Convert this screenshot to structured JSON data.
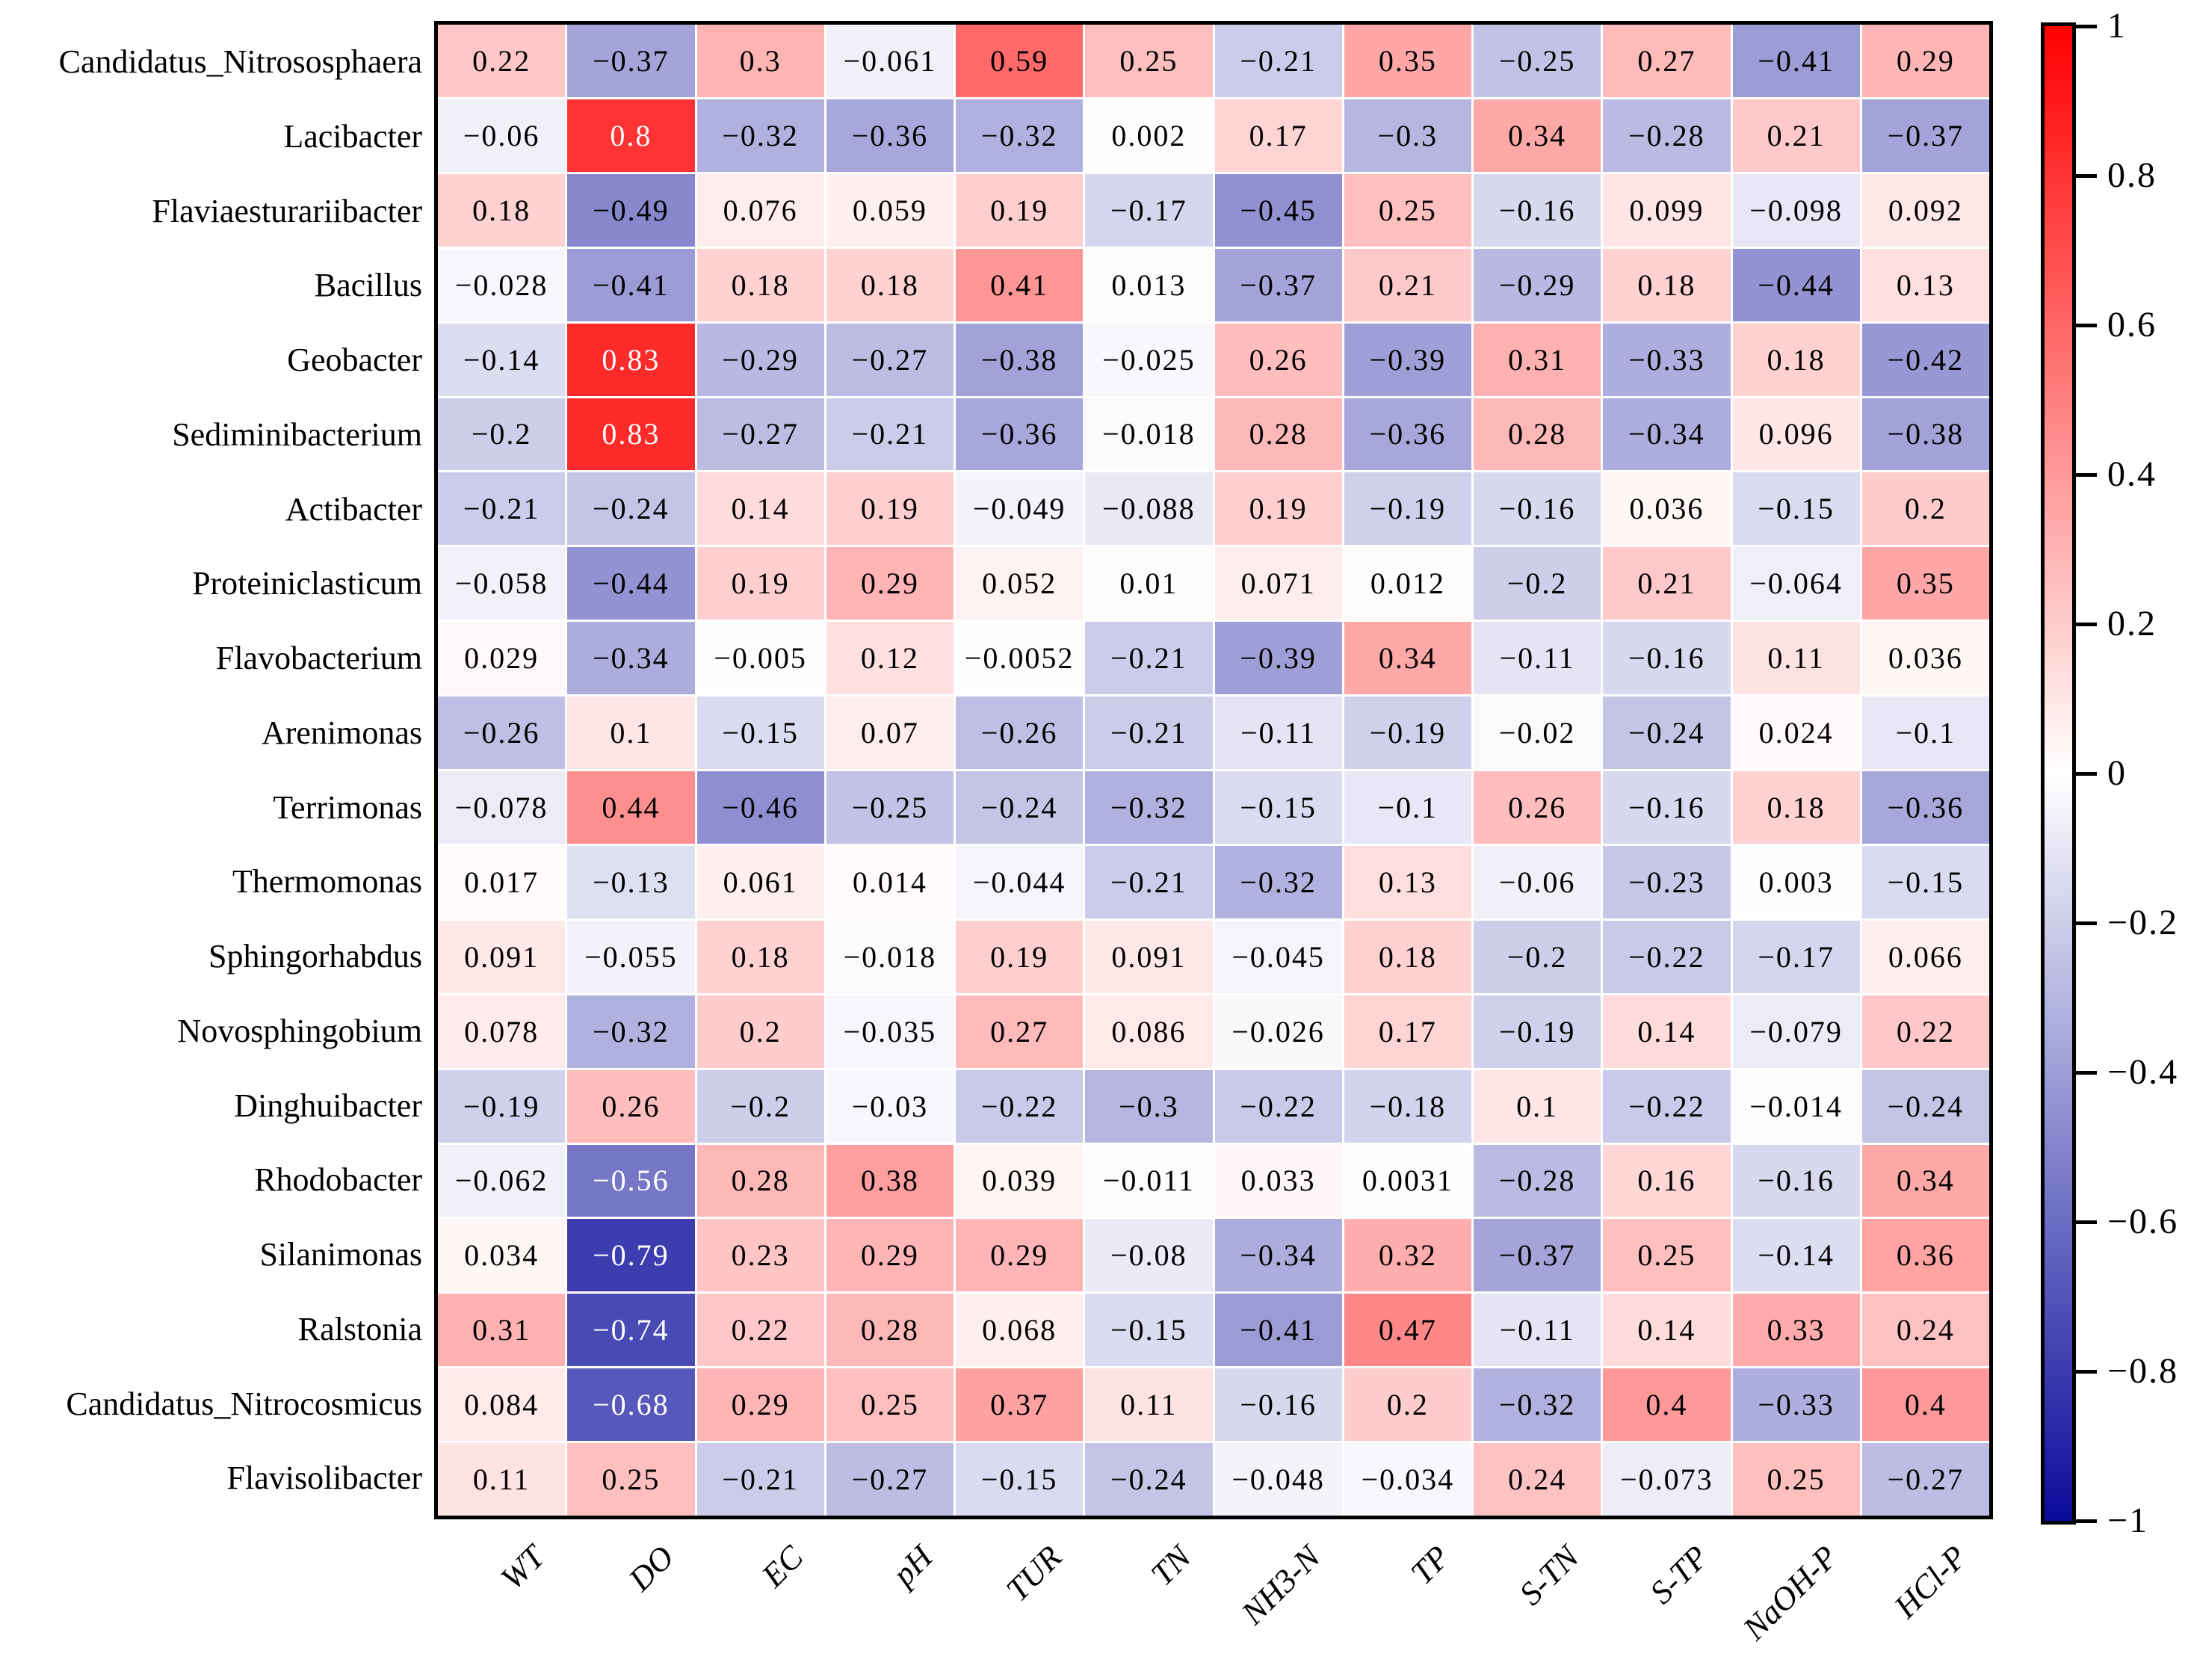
{
  "chart_data": {
    "type": "heatmap",
    "title": "",
    "xlabel": "",
    "ylabel": "",
    "rows": [
      "Candidatus_Nitrososphaera",
      "Lacibacter",
      "Flaviaesturariibacter",
      "Bacillus",
      "Geobacter",
      "Sediminibacterium",
      "Actibacter",
      "Proteiniclasticum",
      "Flavobacterium",
      "Arenimonas",
      "Terrimonas",
      "Thermomonas",
      "Sphingorhabdus",
      "Novosphingobium",
      "Dinghuibacter",
      "Rhodobacter",
      "Silanimonas",
      "Ralstonia",
      "Candidatus_Nitrocosmicus",
      "Flavisolibacter"
    ],
    "columns": [
      "WT",
      "DO",
      "EC",
      "pH",
      "TUR",
      "TN",
      "NH3-N",
      "TP",
      "S-TN",
      "S-TP",
      "NaOH-P",
      "HCl-P"
    ],
    "values": [
      [
        0.22,
        -0.37,
        0.3,
        -0.061,
        0.59,
        0.25,
        -0.21,
        0.35,
        -0.25,
        0.27,
        -0.41,
        0.29
      ],
      [
        -0.06,
        0.8,
        -0.32,
        -0.36,
        -0.32,
        0.002,
        0.17,
        -0.3,
        0.34,
        -0.28,
        0.21,
        -0.37
      ],
      [
        0.18,
        -0.49,
        0.076,
        0.059,
        0.19,
        -0.17,
        -0.45,
        0.25,
        -0.16,
        0.099,
        -0.098,
        0.092
      ],
      [
        -0.028,
        -0.41,
        0.18,
        0.18,
        0.41,
        0.013,
        -0.37,
        0.21,
        -0.29,
        0.18,
        -0.44,
        0.13
      ],
      [
        -0.14,
        0.83,
        -0.29,
        -0.27,
        -0.38,
        -0.025,
        0.26,
        -0.39,
        0.31,
        -0.33,
        0.18,
        -0.42
      ],
      [
        -0.2,
        0.83,
        -0.27,
        -0.21,
        -0.36,
        -0.018,
        0.28,
        -0.36,
        0.28,
        -0.34,
        0.096,
        -0.38
      ],
      [
        -0.21,
        -0.24,
        0.14,
        0.19,
        -0.049,
        -0.088,
        0.19,
        -0.19,
        -0.16,
        0.036,
        -0.15,
        0.2
      ],
      [
        -0.058,
        -0.44,
        0.19,
        0.29,
        0.052,
        0.01,
        0.071,
        0.012,
        -0.2,
        0.21,
        -0.064,
        0.35
      ],
      [
        0.029,
        -0.34,
        -0.005,
        0.12,
        -0.0052,
        -0.21,
        -0.39,
        0.34,
        -0.11,
        -0.16,
        0.11,
        0.036
      ],
      [
        -0.26,
        0.1,
        -0.15,
        0.07,
        -0.26,
        -0.21,
        -0.11,
        -0.19,
        -0.02,
        -0.24,
        0.024,
        -0.1
      ],
      [
        -0.078,
        0.44,
        -0.46,
        -0.25,
        -0.24,
        -0.32,
        -0.15,
        -0.1,
        0.26,
        -0.16,
        0.18,
        -0.36
      ],
      [
        0.017,
        -0.13,
        0.061,
        0.014,
        -0.044,
        -0.21,
        -0.32,
        0.13,
        -0.06,
        -0.23,
        0.003,
        -0.15
      ],
      [
        0.091,
        -0.055,
        0.18,
        -0.018,
        0.19,
        0.091,
        -0.045,
        0.18,
        -0.2,
        -0.22,
        -0.17,
        0.066
      ],
      [
        0.078,
        -0.32,
        0.2,
        -0.035,
        0.27,
        0.086,
        -0.026,
        0.17,
        -0.19,
        0.14,
        -0.079,
        0.22
      ],
      [
        -0.19,
        0.26,
        -0.2,
        -0.03,
        -0.22,
        -0.3,
        -0.22,
        -0.18,
        0.1,
        -0.22,
        -0.014,
        -0.24
      ],
      [
        -0.062,
        -0.56,
        0.28,
        0.38,
        0.039,
        -0.011,
        0.033,
        0.0031,
        -0.28,
        0.16,
        -0.16,
        0.34
      ],
      [
        0.034,
        -0.79,
        0.23,
        0.29,
        0.29,
        -0.08,
        -0.34,
        0.32,
        -0.37,
        0.25,
        -0.14,
        0.36
      ],
      [
        0.31,
        -0.74,
        0.22,
        0.28,
        0.068,
        -0.15,
        -0.41,
        0.47,
        -0.11,
        0.14,
        0.33,
        0.24
      ],
      [
        0.084,
        -0.68,
        0.29,
        0.25,
        0.37,
        0.11,
        -0.16,
        0.2,
        -0.32,
        0.4,
        -0.33,
        0.4
      ],
      [
        0.11,
        0.25,
        -0.21,
        -0.27,
        -0.15,
        -0.24,
        -0.048,
        -0.034,
        0.24,
        -0.073,
        0.25,
        -0.27
      ]
    ],
    "colorbar": {
      "vmin": -1,
      "vmax": 1,
      "ticks": [
        1,
        0.8,
        0.6,
        0.4,
        0.2,
        0,
        -0.2,
        -0.4,
        -0.6,
        -0.8,
        -1
      ],
      "color_max": "#ff0000",
      "color_mid": "#ffffff",
      "color_min": "#0a0a9b",
      "position": "right"
    },
    "grid": false,
    "cell_text_colors": [
      "#000000",
      "#ffffff"
    ]
  }
}
